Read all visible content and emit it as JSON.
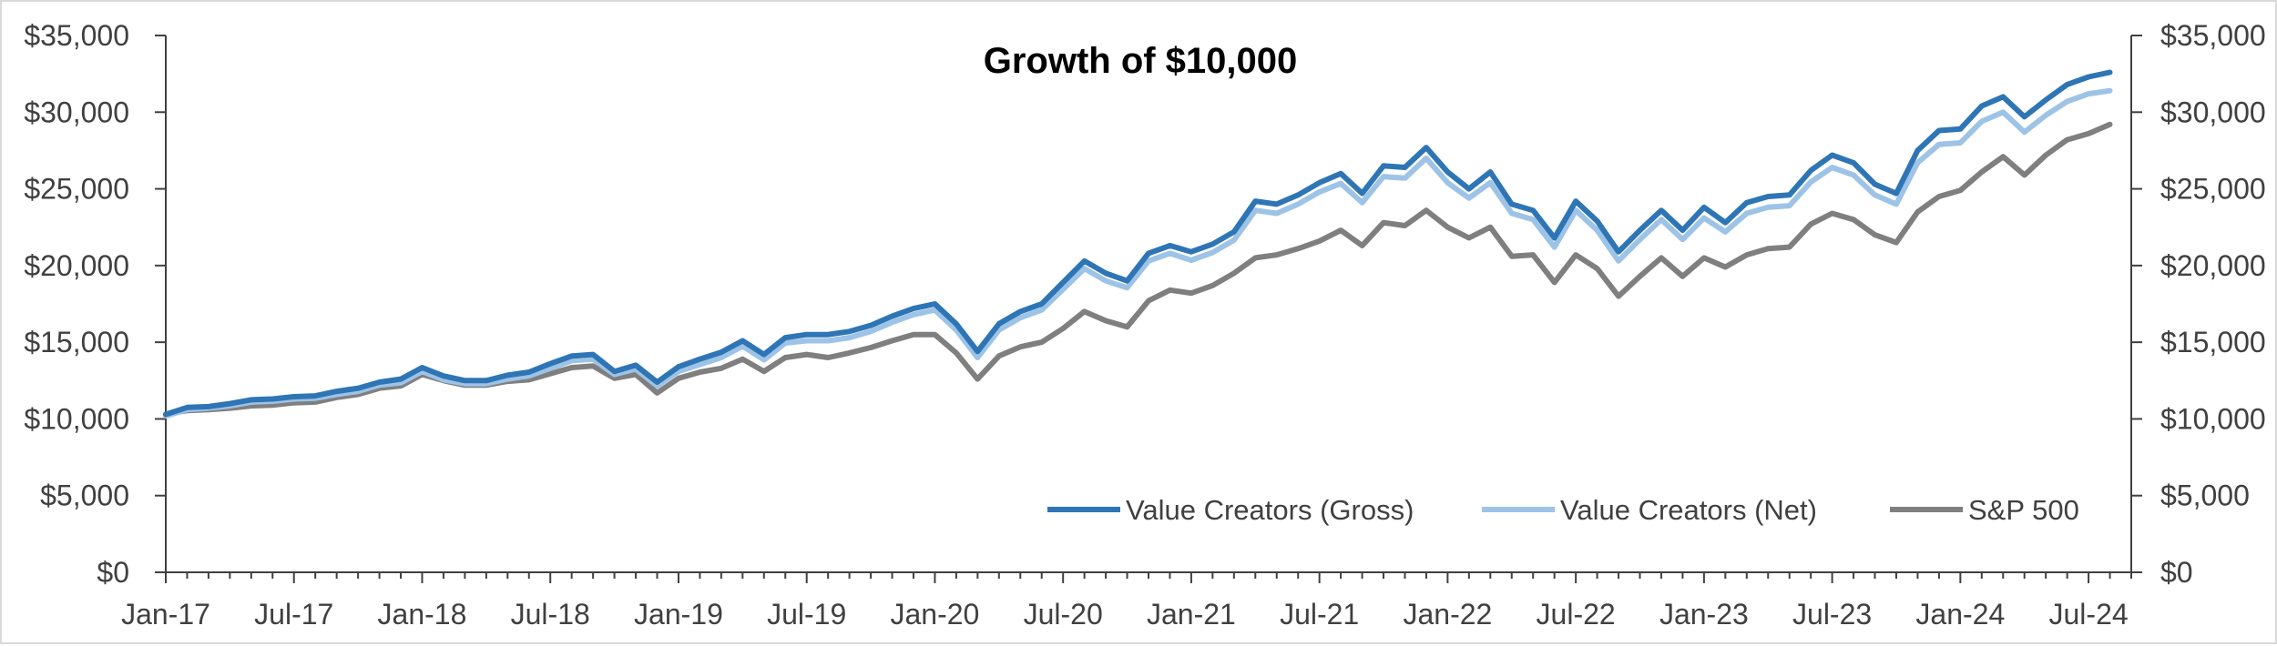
{
  "chart_data": {
    "type": "line",
    "title": "Growth of $10,000",
    "xlabel": "",
    "ylabel": "",
    "ylim": [
      0,
      35000
    ],
    "y_ticks": [
      0,
      5000,
      10000,
      15000,
      20000,
      25000,
      30000,
      35000
    ],
    "y_tick_labels": [
      "$0",
      "$5,000",
      "$10,000",
      "$15,000",
      "$20,000",
      "$25,000",
      "$30,000",
      "$35,000"
    ],
    "x_tick_labels": [
      "Jan-17",
      "Jul-17",
      "Jan-18",
      "Jul-18",
      "Jan-19",
      "Jul-19",
      "Jan-20",
      "Jul-20",
      "Jan-21",
      "Jul-21",
      "Jan-22",
      "Jul-22",
      "Jan-23",
      "Jul-23",
      "Jan-24",
      "Jul-24"
    ],
    "x_start": "Jan-17",
    "x_end": "Sep-24",
    "grid": false,
    "legend_position": "bottom-right",
    "colors": {
      "gross": "#2e75b6",
      "net": "#9dc3e6",
      "sp500": "#7f7f7f",
      "axis": "#404040"
    },
    "series": [
      {
        "name": "Value Creators (Gross)",
        "key": "gross",
        "values": [
          10300,
          10750,
          10800,
          11000,
          11250,
          11300,
          11450,
          11500,
          11800,
          12000,
          12400,
          12600,
          13350,
          12800,
          12500,
          12500,
          12850,
          13050,
          13600,
          14100,
          14200,
          13100,
          13500,
          12400,
          13400,
          13900,
          14350,
          15100,
          14200,
          15300,
          15500,
          15500,
          15700,
          16100,
          16700,
          17200,
          17500,
          16200,
          14400,
          16200,
          17000,
          17500,
          18900,
          20300,
          19500,
          19000,
          20800,
          21300,
          20900,
          21400,
          22200,
          24200,
          24000,
          24600,
          25400,
          26000,
          24700,
          26500,
          26400,
          27700,
          26100,
          25000,
          26100,
          24000,
          23600,
          21800,
          24200,
          22900,
          20900,
          22300,
          23600,
          22300,
          23800,
          22800,
          24100,
          24500,
          24600,
          26200,
          27200,
          26700,
          25300,
          24700,
          27500,
          28800,
          28900,
          30400,
          31000,
          29700,
          30800,
          31800,
          32300,
          32600
        ]
      },
      {
        "name": "Value Creators (Net)",
        "key": "net",
        "values": [
          10200,
          10600,
          10700,
          10850,
          11100,
          11150,
          11300,
          11350,
          11600,
          11800,
          12200,
          12350,
          13100,
          12550,
          12300,
          12300,
          12600,
          12800,
          13300,
          13800,
          13900,
          12900,
          13250,
          12150,
          13100,
          13550,
          14000,
          14750,
          13850,
          14950,
          15100,
          15100,
          15300,
          15700,
          16300,
          16800,
          17100,
          15800,
          14000,
          15800,
          16600,
          17100,
          18450,
          19800,
          19000,
          18550,
          20300,
          20800,
          20350,
          20850,
          21650,
          23600,
          23400,
          24000,
          24800,
          25350,
          24100,
          25800,
          25700,
          27000,
          25400,
          24400,
          25400,
          23400,
          23000,
          21200,
          23600,
          22300,
          20300,
          21700,
          23000,
          21700,
          23100,
          22200,
          23400,
          23800,
          23900,
          25450,
          26400,
          25900,
          24600,
          24000,
          26700,
          27900,
          28000,
          29400,
          30000,
          28700,
          29800,
          30700,
          31200,
          31400
        ]
      },
      {
        "name": "S&P 500",
        "key": "sp500",
        "values": [
          10300,
          10550,
          10600,
          10700,
          10850,
          10900,
          11050,
          11100,
          11400,
          11600,
          12000,
          12150,
          12900,
          12500,
          12200,
          12200,
          12450,
          12550,
          12950,
          13350,
          13450,
          12650,
          12900,
          11700,
          12650,
          13050,
          13300,
          13900,
          13100,
          14000,
          14200,
          14000,
          14300,
          14650,
          15100,
          15500,
          15500,
          14300,
          12600,
          14100,
          14700,
          15000,
          15900,
          17000,
          16400,
          16000,
          17700,
          18400,
          18200,
          18700,
          19500,
          20500,
          20700,
          21100,
          21600,
          22300,
          21300,
          22800,
          22600,
          23600,
          22500,
          21800,
          22500,
          20600,
          20700,
          18900,
          20700,
          19800,
          18000,
          19300,
          20500,
          19300,
          20500,
          19900,
          20700,
          21100,
          21200,
          22700,
          23400,
          23000,
          22000,
          21500,
          23500,
          24500,
          24900,
          26100,
          27100,
          25900,
          27200,
          28200,
          28600,
          29200
        ]
      }
    ]
  }
}
